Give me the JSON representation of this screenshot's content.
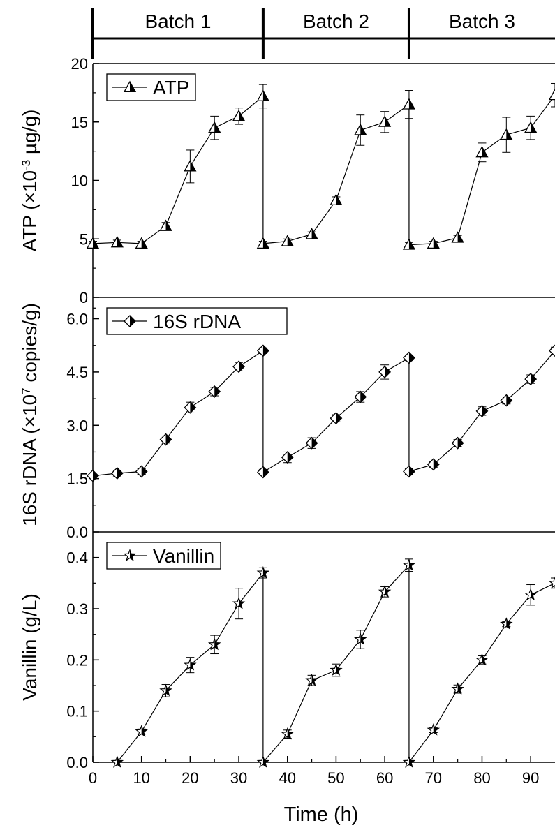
{
  "batches": [
    {
      "label": "Batch 1",
      "start": 0,
      "end": 35
    },
    {
      "label": "Batch 2",
      "start": 35,
      "end": 65
    },
    {
      "label": "Batch 3",
      "start": 65,
      "end": 95
    }
  ],
  "xlabel": "Time (h)",
  "chart_data": [
    {
      "type": "line",
      "legend": "ATP",
      "marker": "triangle-half",
      "ylabel_prefix": "ATP (×10",
      "ylabel_exp": "-3",
      "ylabel_suffix": " µg/g)",
      "xlim": [
        0,
        95
      ],
      "ylim": [
        0,
        20
      ],
      "yticks": [
        0,
        5,
        10,
        15,
        20
      ],
      "ytick_labels": [
        "0",
        "5",
        "10",
        "15",
        "20"
      ],
      "segments": [
        {
          "x": [
            0,
            5,
            10,
            15,
            20,
            25,
            30,
            35
          ],
          "y": [
            4.6,
            4.7,
            4.6,
            6.1,
            11.2,
            14.5,
            15.5,
            17.2
          ],
          "err": [
            0.2,
            0.2,
            0.2,
            0.3,
            1.4,
            1.0,
            0.7,
            1.0
          ]
        },
        {
          "x": [
            35,
            40,
            45,
            50,
            55,
            60,
            65
          ],
          "y": [
            4.6,
            4.8,
            5.4,
            8.3,
            14.3,
            15.0,
            16.5
          ],
          "err": [
            0.2,
            0.2,
            0.2,
            0.3,
            1.3,
            0.9,
            1.2
          ]
        },
        {
          "x": [
            65,
            70,
            75,
            80,
            85,
            90,
            95
          ],
          "y": [
            4.5,
            4.6,
            5.1,
            12.4,
            13.9,
            14.5,
            17.3
          ],
          "err": [
            0.2,
            0.2,
            0.2,
            0.8,
            1.5,
            1.0,
            1.0
          ]
        }
      ],
      "connectors": [
        35,
        65
      ]
    },
    {
      "type": "line",
      "legend": "16S rDNA",
      "marker": "diamond-half",
      "ylabel_prefix": "16S rDNA (×10",
      "ylabel_exp": "7",
      "ylabel_suffix": " copies/g)",
      "xlim": [
        0,
        95
      ],
      "ylim": [
        0,
        6.6
      ],
      "yticks": [
        0,
        1.5,
        3.0,
        4.5,
        6.0
      ],
      "ytick_labels": [
        "0.0",
        "1.5",
        "3.0",
        "4.5",
        "6.0"
      ],
      "segments": [
        {
          "x": [
            0,
            5,
            10,
            15,
            20,
            25,
            30,
            35
          ],
          "y": [
            1.58,
            1.65,
            1.7,
            2.6,
            3.5,
            3.95,
            4.65,
            5.1
          ],
          "err": [
            0.08,
            0.08,
            0.08,
            0.1,
            0.15,
            0.12,
            0.12,
            0.08
          ]
        },
        {
          "x": [
            35,
            40,
            45,
            50,
            55,
            60,
            65
          ],
          "y": [
            1.68,
            2.1,
            2.5,
            3.2,
            3.8,
            4.5,
            4.9
          ],
          "err": [
            0.08,
            0.15,
            0.15,
            0.1,
            0.15,
            0.2,
            0.08
          ]
        },
        {
          "x": [
            65,
            70,
            75,
            80,
            85,
            90,
            95
          ],
          "y": [
            1.7,
            1.9,
            2.5,
            3.4,
            3.7,
            4.3,
            5.1
          ],
          "err": [
            0.08,
            0.08,
            0.1,
            0.12,
            0.1,
            0.12,
            0.1
          ]
        }
      ],
      "connectors": [
        35,
        65
      ]
    },
    {
      "type": "line",
      "legend": "Vanillin",
      "marker": "star",
      "ylabel_prefix": "Vanillin (g/L)",
      "ylabel_exp": "",
      "ylabel_suffix": "",
      "xlim": [
        0,
        95
      ],
      "ylim": [
        0,
        0.45
      ],
      "yticks": [
        0,
        0.1,
        0.2,
        0.3,
        0.4
      ],
      "ytick_labels": [
        "0.0",
        "0.1",
        "0.2",
        "0.3",
        "0.4"
      ],
      "xticks": [
        0,
        10,
        20,
        30,
        40,
        50,
        60,
        70,
        80,
        90
      ],
      "xtick_labels": [
        "0",
        "10",
        "20",
        "30",
        "40",
        "50",
        "60",
        "70",
        "80",
        "90"
      ],
      "segments": [
        {
          "x": [
            5,
            10,
            15,
            20,
            25,
            30,
            35
          ],
          "y": [
            0,
            0.06,
            0.14,
            0.19,
            0.23,
            0.31,
            0.37
          ],
          "err": [
            0,
            0.005,
            0.012,
            0.015,
            0.018,
            0.03,
            0.01
          ]
        },
        {
          "x": [
            35,
            40,
            45,
            50,
            55,
            60,
            65
          ],
          "y": [
            0,
            0.055,
            0.16,
            0.18,
            0.24,
            0.333,
            0.385
          ],
          "err": [
            0,
            0.008,
            0.01,
            0.012,
            0.018,
            0.01,
            0.012
          ]
        },
        {
          "x": [
            65,
            70,
            75,
            80,
            85,
            90,
            95
          ],
          "y": [
            0,
            0.063,
            0.143,
            0.2,
            0.27,
            0.327,
            0.35
          ],
          "err": [
            0,
            0.005,
            0.008,
            0.008,
            0.005,
            0.02,
            0.01
          ]
        }
      ],
      "connectors": [
        35,
        65
      ]
    }
  ]
}
